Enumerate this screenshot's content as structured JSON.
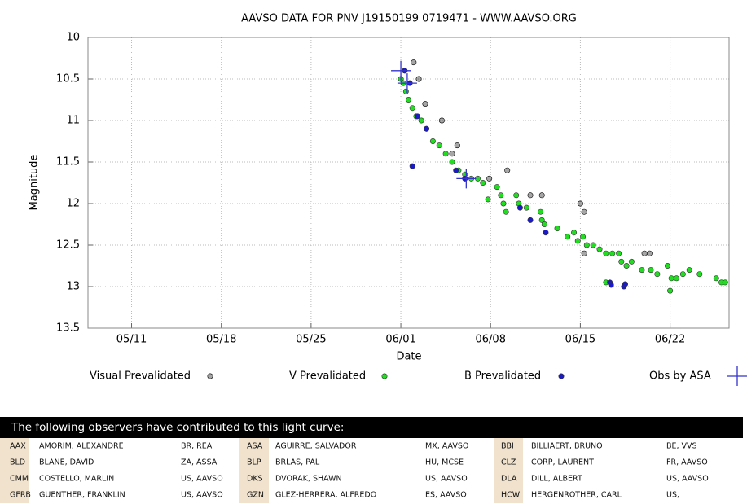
{
  "chart_data": {
    "type": "scatter",
    "title": "AAVSO DATA FOR PNV J19150199 0719471 - WWW.AAVSO.ORG",
    "x_label": "Date",
    "y_label": "Magnitude",
    "xlim": [
      127.6,
      177.6
    ],
    "xticks": [
      {
        "value": 131,
        "label": "05/11"
      },
      {
        "value": 138,
        "label": "05/18"
      },
      {
        "value": 145,
        "label": "05/25"
      },
      {
        "value": 152,
        "label": "06/01"
      },
      {
        "value": 159,
        "label": "06/08"
      },
      {
        "value": 166,
        "label": "06/15"
      },
      {
        "value": 173,
        "label": "06/22"
      }
    ],
    "ylim": [
      10,
      13.5
    ],
    "y_inverted": true,
    "yticks": [
      10,
      10.5,
      11,
      11.5,
      12,
      12.5,
      13,
      13.5
    ],
    "grid": true,
    "series": [
      {
        "name": "Visual Prevalidated",
        "color": "#000000",
        "marker": "circle",
        "x": [
          152.3,
          153.0,
          153.4,
          153.9,
          155.2,
          156.0,
          156.4,
          158.9,
          160.3,
          162.1,
          163.0,
          166.0,
          166.3,
          166.3,
          171.0,
          171.4
        ],
        "values": [
          10.4,
          10.3,
          10.5,
          10.8,
          11.0,
          11.4,
          11.3,
          11.7,
          11.6,
          11.9,
          11.9,
          12.0,
          12.1,
          12.6,
          12.6,
          12.6
        ]
      },
      {
        "name": "V Prevalidated",
        "color": "#22dd22",
        "marker": "circle",
        "x": [
          152.0,
          152.2,
          152.4,
          152.6,
          152.9,
          153.2,
          153.6,
          154.0,
          154.5,
          155.0,
          155.5,
          156.0,
          156.5,
          157.0,
          157.5,
          158.0,
          158.4,
          158.8,
          159.5,
          159.8,
          160.0,
          160.2,
          161.0,
          161.2,
          161.8,
          162.9,
          163.0,
          163.2,
          164.2,
          165.0,
          165.5,
          165.8,
          166.2,
          166.5,
          167.0,
          167.5,
          168.0,
          168.0,
          168.5,
          169.0,
          169.2,
          169.6,
          170.0,
          170.8,
          171.5,
          172.0,
          172.8,
          173.0,
          173.1,
          173.5,
          174.0,
          174.5,
          175.3,
          176.6,
          177.0,
          177.3
        ],
        "values": [
          10.5,
          10.55,
          10.65,
          10.75,
          10.85,
          10.95,
          11.0,
          11.1,
          11.25,
          11.3,
          11.4,
          11.5,
          11.6,
          11.65,
          11.7,
          11.7,
          11.75,
          11.95,
          11.8,
          11.9,
          12.0,
          12.1,
          11.9,
          12.0,
          12.05,
          12.1,
          12.2,
          12.25,
          12.3,
          12.4,
          12.35,
          12.45,
          12.4,
          12.5,
          12.5,
          12.55,
          12.6,
          12.95,
          12.6,
          12.6,
          12.7,
          12.75,
          12.7,
          12.8,
          12.8,
          12.85,
          12.75,
          13.05,
          12.9,
          12.9,
          12.85,
          12.8,
          12.85,
          12.9,
          12.95,
          12.95
        ]
      },
      {
        "name": "B Prevalidated",
        "color": "#1a1acc",
        "marker": "circle",
        "x": [
          152.3,
          152.7,
          152.9,
          153.3,
          154.0,
          156.3,
          157.0,
          161.3,
          162.1,
          163.3,
          168.3,
          168.4,
          169.4,
          169.5
        ],
        "values": [
          10.4,
          10.55,
          11.55,
          10.95,
          11.1,
          11.6,
          11.7,
          12.05,
          12.2,
          12.35,
          12.95,
          12.98,
          13.0,
          12.97
        ]
      },
      {
        "name": "Obs by ASA",
        "color": "#3333cc",
        "marker": "plus",
        "x": [
          152.0,
          152.5,
          157.1
        ],
        "values": [
          10.4,
          10.55,
          11.7
        ]
      }
    ]
  },
  "table": {
    "header": "The following observers have contributed to this light curve:",
    "rows": [
      [
        "AAX",
        "AMORIM, ALEXANDRE",
        "BR, REA",
        "ASA",
        "AGUIRRE, SALVADOR",
        "MX, AAVSO",
        "BBI",
        "BILLIAERT, BRUNO",
        "BE, VVS"
      ],
      [
        "BLD",
        "BLANE, DAVID",
        "ZA, ASSA",
        "BLP",
        "BRLAS, PAL",
        "HU, MCSE",
        "CLZ",
        "CORP, LAURENT",
        "FR, AAVSO"
      ],
      [
        "CMM",
        "COSTELLO, MARLIN",
        "US, AAVSO",
        "DKS",
        "DVORAK, SHAWN",
        "US, AAVSO",
        "DLA",
        "DILL, ALBERT",
        "US, AAVSO"
      ],
      [
        "GFRB",
        "GUENTHER, FRANKLIN",
        "US, AAVSO",
        "GZN",
        "GLEZ-HERRERA, ALFREDO",
        "ES, AAVSO",
        "HCW",
        "HERGENROTHER, CARL",
        "US,"
      ]
    ]
  }
}
